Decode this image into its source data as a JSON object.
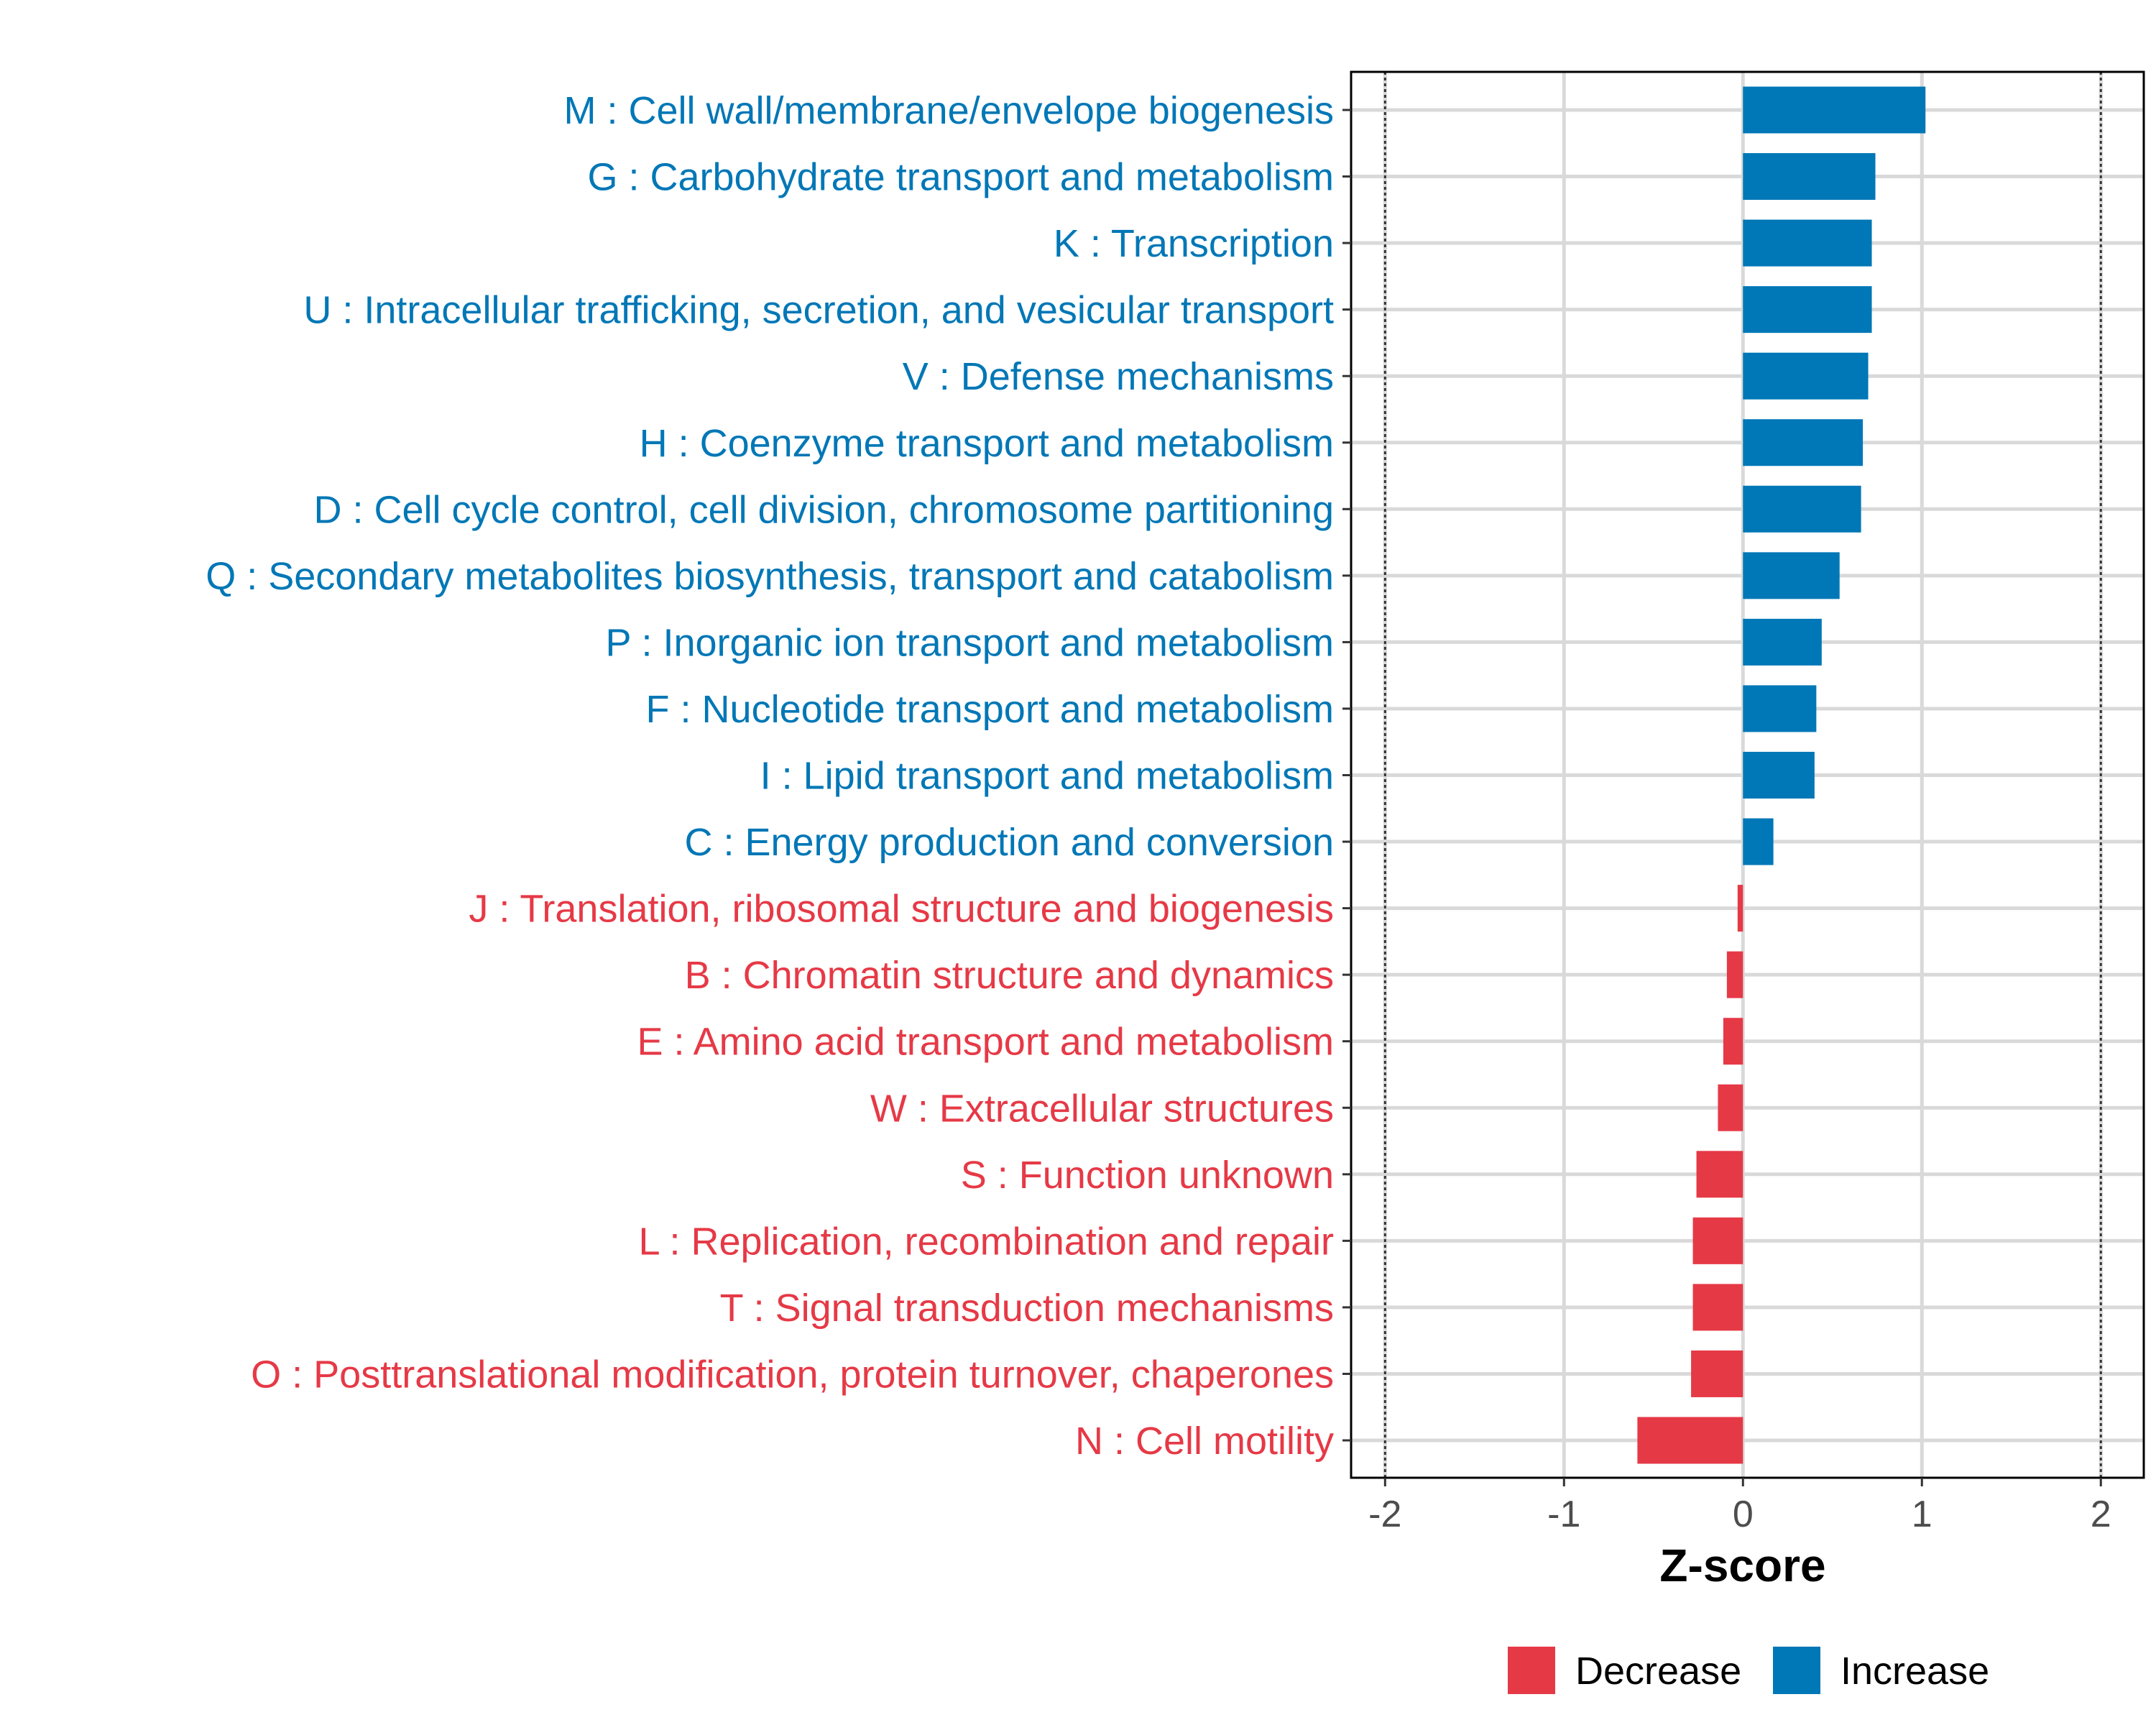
{
  "chart_data": {
    "type": "bar",
    "orientation": "horizontal",
    "title": "",
    "xlabel": "Z-score",
    "ylabel": "",
    "xlim": [
      -2.19,
      2.24
    ],
    "xticks": [
      -2,
      -1,
      0,
      1,
      2
    ],
    "xtick_labels": [
      "-2",
      "-1",
      "0",
      "1",
      "2"
    ],
    "reference_lines": [
      -2,
      2
    ],
    "grid": true,
    "categories": [
      "M : Cell wall/membrane/envelope biogenesis",
      "G : Carbohydrate transport and metabolism",
      "K : Transcription",
      "U : Intracellular trafficking, secretion, and vesicular transport",
      "V : Defense mechanisms",
      "H : Coenzyme transport and metabolism",
      "D : Cell cycle control, cell division, chromosome partitioning",
      "Q : Secondary metabolites biosynthesis, transport and catabolism",
      "P : Inorganic ion transport and metabolism",
      "F : Nucleotide transport and metabolism",
      "I : Lipid transport and metabolism",
      "C : Energy production and conversion",
      "J : Translation, ribosomal structure and biogenesis",
      "B : Chromatin structure and dynamics",
      "E : Amino acid transport and metabolism",
      "W : Extracellular structures",
      "S : Function unknown",
      "L : Replication, recombination and repair",
      "T : Signal transduction mechanisms",
      "O : Posttranslational modification, protein turnover, chaperones",
      "N : Cell motility"
    ],
    "values": [
      1.02,
      0.74,
      0.72,
      0.72,
      0.7,
      0.67,
      0.66,
      0.54,
      0.44,
      0.41,
      0.4,
      0.17,
      -0.03,
      -0.09,
      -0.11,
      -0.14,
      -0.26,
      -0.28,
      -0.28,
      -0.29,
      -0.59
    ],
    "legend": {
      "placement": "bottom",
      "entries": [
        {
          "label": "Decrease",
          "color": "#E63946"
        },
        {
          "label": "Increase",
          "color": "#0077B6"
        }
      ]
    },
    "colors": {
      "increase": "#0077B6",
      "decrease": "#E63946",
      "grid": "#D9D9D9"
    }
  }
}
